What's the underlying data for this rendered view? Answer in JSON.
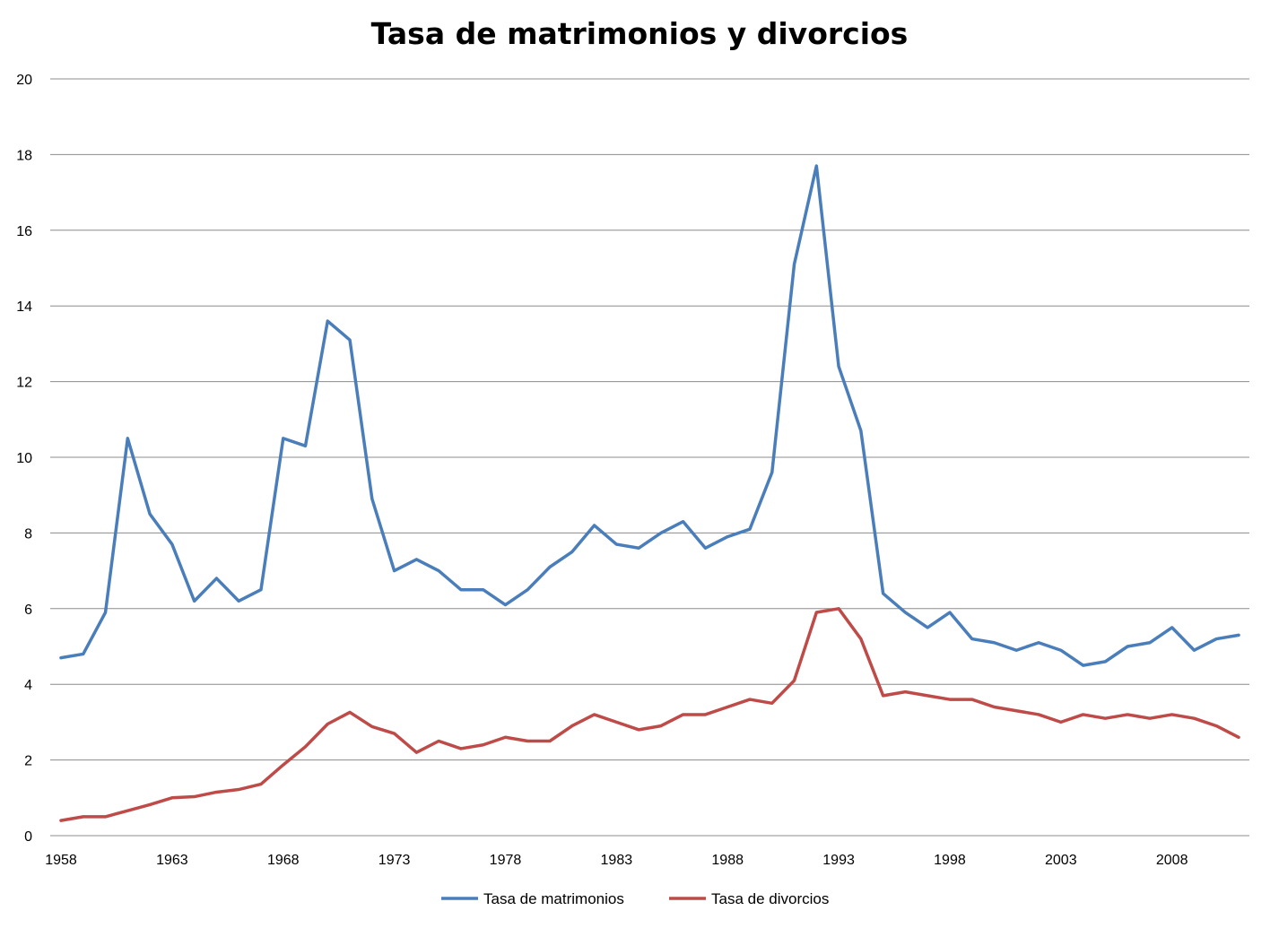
{
  "chart_data": {
    "type": "line",
    "title": "Tasa de matrimonios y divorcios",
    "xlabel": "",
    "ylabel": "",
    "ylim": [
      0,
      20
    ],
    "yticks": [
      0,
      2,
      4,
      6,
      8,
      10,
      12,
      14,
      16,
      18,
      20
    ],
    "xticks": [
      1958,
      1963,
      1968,
      1973,
      1978,
      1983,
      1988,
      1993,
      1998,
      2003,
      2008
    ],
    "grid": "horizontal",
    "legend": "bottom",
    "x": [
      1958,
      1959,
      1960,
      1961,
      1962,
      1963,
      1964,
      1965,
      1966,
      1967,
      1968,
      1969,
      1970,
      1971,
      1972,
      1973,
      1974,
      1975,
      1976,
      1977,
      1978,
      1979,
      1980,
      1981,
      1982,
      1983,
      1984,
      1985,
      1986,
      1987,
      1988,
      1989,
      1990,
      1991,
      1992,
      1993,
      1994,
      1995,
      1996,
      1997,
      1998,
      1999,
      2000,
      2001,
      2002,
      2003,
      2004,
      2005,
      2006,
      2007,
      2008,
      2009,
      2010,
      2011
    ],
    "series": [
      {
        "name": "Tasa de matrimonios",
        "color": "#4A7EBB",
        "values": [
          4.7,
          4.8,
          5.9,
          10.5,
          8.5,
          7.7,
          6.2,
          6.8,
          6.2,
          6.5,
          10.5,
          10.3,
          13.6,
          13.1,
          8.9,
          7.0,
          7.3,
          7.0,
          6.5,
          6.5,
          6.1,
          6.5,
          7.1,
          7.5,
          8.2,
          7.7,
          7.6,
          8.0,
          8.3,
          7.6,
          7.9,
          8.1,
          9.6,
          15.1,
          17.7,
          12.4,
          10.7,
          6.4,
          5.9,
          5.5,
          5.9,
          5.2,
          5.1,
          4.9,
          5.1,
          4.9,
          4.5,
          4.6,
          5.0,
          5.1,
          5.5,
          4.9,
          5.2,
          5.3
        ]
      },
      {
        "name": "Tasa de divorcios",
        "color": "#BE4B48",
        "values": [
          0.4,
          0.5,
          0.5,
          0.66,
          0.82,
          1.0,
          1.03,
          1.15,
          1.22,
          1.36,
          1.87,
          2.35,
          2.95,
          3.26,
          2.88,
          2.7,
          2.2,
          2.5,
          2.3,
          2.4,
          2.6,
          2.5,
          2.5,
          2.9,
          3.2,
          3.0,
          2.8,
          2.9,
          3.2,
          3.2,
          3.4,
          3.6,
          3.5,
          4.1,
          5.9,
          6.0,
          5.2,
          3.7,
          3.8,
          3.7,
          3.6,
          3.6,
          3.4,
          3.3,
          3.2,
          3.0,
          3.2,
          3.1,
          3.2,
          3.1,
          3.2,
          3.1,
          2.9,
          2.6
        ]
      }
    ]
  }
}
